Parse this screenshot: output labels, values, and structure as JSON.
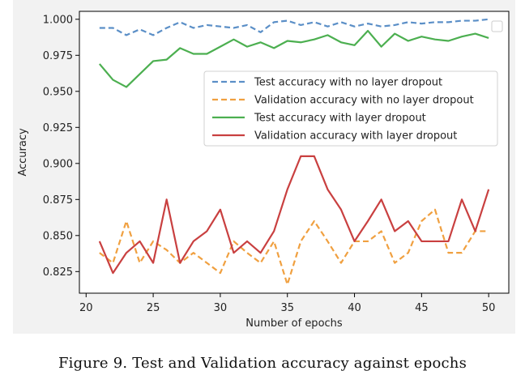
{
  "caption": "Figure 9. Test and Validation accuracy against epochs",
  "chart_data": {
    "type": "line",
    "title": "",
    "xlabel": "Number of epochs",
    "ylabel": "Accuracy",
    "xlim": [
      19.5,
      51.5
    ],
    "ylim": [
      0.81,
      1.0055
    ],
    "x_ticks": [
      20,
      25,
      30,
      35,
      40,
      45,
      50
    ],
    "x_tick_labels": [
      "20",
      "25",
      "30",
      "35",
      "40",
      "45",
      "50"
    ],
    "y_ticks": [
      0.825,
      0.85,
      0.875,
      0.9,
      0.925,
      0.95,
      0.975,
      1.0
    ],
    "y_tick_labels": [
      "0.825",
      "0.850",
      "0.875",
      "0.900",
      "0.925",
      "0.950",
      "0.975",
      "1.000"
    ],
    "grid": false,
    "legend_position": "center-right",
    "x": [
      21,
      22,
      23,
      24,
      25,
      26,
      27,
      28,
      29,
      30,
      31,
      32,
      33,
      34,
      35,
      36,
      37,
      38,
      39,
      40,
      41,
      42,
      43,
      44,
      45,
      46,
      47,
      48,
      49,
      50
    ],
    "series": [
      {
        "name": "Test accuracy with no layer dropout",
        "color": "#5b8fc7",
        "style": "dashed",
        "values": [
          0.994,
          0.994,
          0.989,
          0.993,
          0.989,
          0.994,
          0.998,
          0.994,
          0.996,
          0.995,
          0.994,
          0.996,
          0.991,
          0.998,
          0.999,
          0.996,
          0.998,
          0.995,
          0.998,
          0.995,
          0.997,
          0.995,
          0.996,
          0.998,
          0.997,
          0.998,
          0.998,
          0.999,
          0.999,
          1.0
        ]
      },
      {
        "name": "Validation accuracy with no layer dropout",
        "color": "#f0a040",
        "style": "dashed",
        "values": [
          0.838,
          0.831,
          0.86,
          0.831,
          0.846,
          0.84,
          0.831,
          0.838,
          0.831,
          0.824,
          0.846,
          0.838,
          0.831,
          0.846,
          0.816,
          0.846,
          0.86,
          0.846,
          0.831,
          0.846,
          0.846,
          0.853,
          0.831,
          0.838,
          0.86,
          0.868,
          0.838,
          0.838,
          0.853,
          0.853
        ]
      },
      {
        "name": "Test accuracy with layer dropout",
        "color": "#4caf50",
        "style": "solid",
        "values": [
          0.969,
          0.958,
          0.953,
          0.962,
          0.971,
          0.972,
          0.98,
          0.976,
          0.976,
          0.981,
          0.986,
          0.981,
          0.984,
          0.98,
          0.985,
          0.984,
          0.986,
          0.989,
          0.984,
          0.982,
          0.992,
          0.981,
          0.99,
          0.985,
          0.988,
          0.986,
          0.985,
          0.988,
          0.99,
          0.987
        ]
      },
      {
        "name": "Validation accuracy with layer dropout",
        "color": "#c94040",
        "style": "solid",
        "values": [
          0.846,
          0.824,
          0.838,
          0.846,
          0.831,
          0.875,
          0.831,
          0.846,
          0.853,
          0.868,
          0.838,
          0.846,
          0.838,
          0.853,
          0.882,
          0.905,
          0.905,
          0.882,
          0.868,
          0.846,
          0.86,
          0.875,
          0.853,
          0.86,
          0.846,
          0.846,
          0.846,
          0.875,
          0.853,
          0.882
        ]
      }
    ]
  }
}
